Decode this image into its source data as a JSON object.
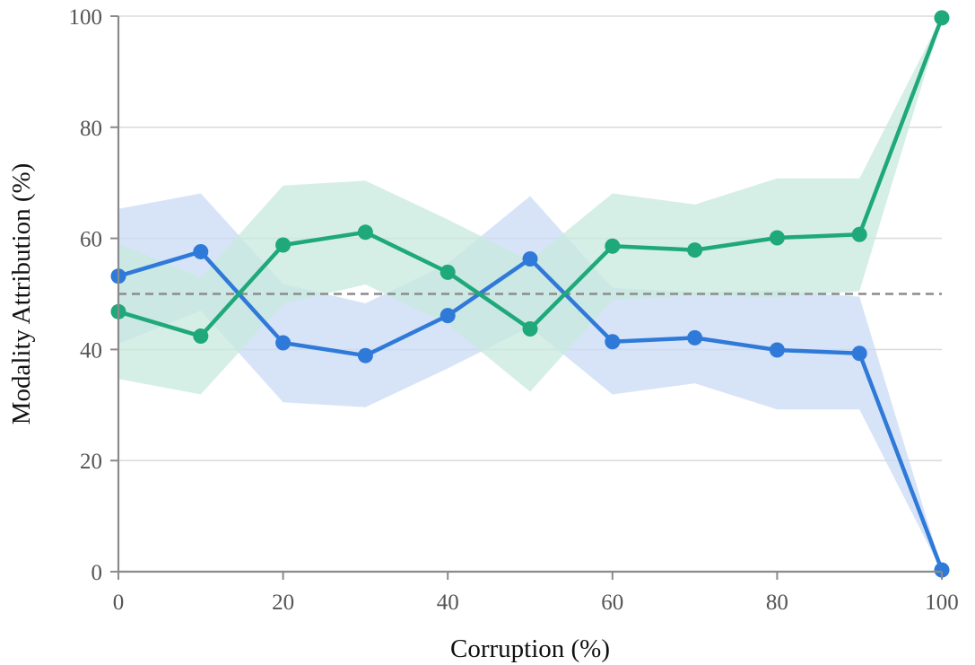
{
  "chart_data": {
    "type": "line",
    "title": "",
    "xlabel": "Corruption (%)",
    "ylabel": "Modality Attribution (%)",
    "xlim": [
      0,
      100
    ],
    "ylim": [
      0,
      100
    ],
    "xticks": [
      0,
      20,
      40,
      60,
      80,
      100
    ],
    "yticks": [
      0,
      20,
      40,
      60,
      80,
      100
    ],
    "grid": "horizontal",
    "reference_line": {
      "y": 50,
      "style": "dashed",
      "color": "#8c8c8c"
    },
    "x": [
      0,
      10,
      20,
      30,
      40,
      50,
      60,
      70,
      80,
      90,
      100
    ],
    "series": [
      {
        "color": "#2f7ad8",
        "band_color": "#c9dbf5",
        "values": [
          53.2,
          57.6,
          41.2,
          38.9,
          46.1,
          56.3,
          41.4,
          42.1,
          39.9,
          39.3,
          0.3
        ],
        "lower": [
          41.0,
          47.0,
          30.5,
          29.6,
          36.6,
          44.0,
          31.9,
          33.9,
          29.2,
          29.2,
          0.0
        ],
        "upper": [
          65.3,
          68.1,
          51.8,
          48.3,
          55.5,
          67.6,
          51.1,
          50.3,
          50.6,
          49.5,
          0.6
        ]
      },
      {
        "color": "#1fa97a",
        "band_color": "#c8eadd",
        "values": [
          46.8,
          42.4,
          58.8,
          61.1,
          53.9,
          43.7,
          58.6,
          57.9,
          60.1,
          60.7,
          99.7
        ],
        "lower": [
          34.7,
          31.9,
          48.2,
          51.7,
          44.5,
          32.4,
          48.9,
          49.7,
          49.4,
          50.5,
          99.4
        ],
        "upper": [
          59.0,
          53.0,
          69.5,
          70.4,
          63.4,
          56.0,
          68.1,
          66.1,
          70.8,
          70.8,
          100.0
        ]
      }
    ]
  }
}
